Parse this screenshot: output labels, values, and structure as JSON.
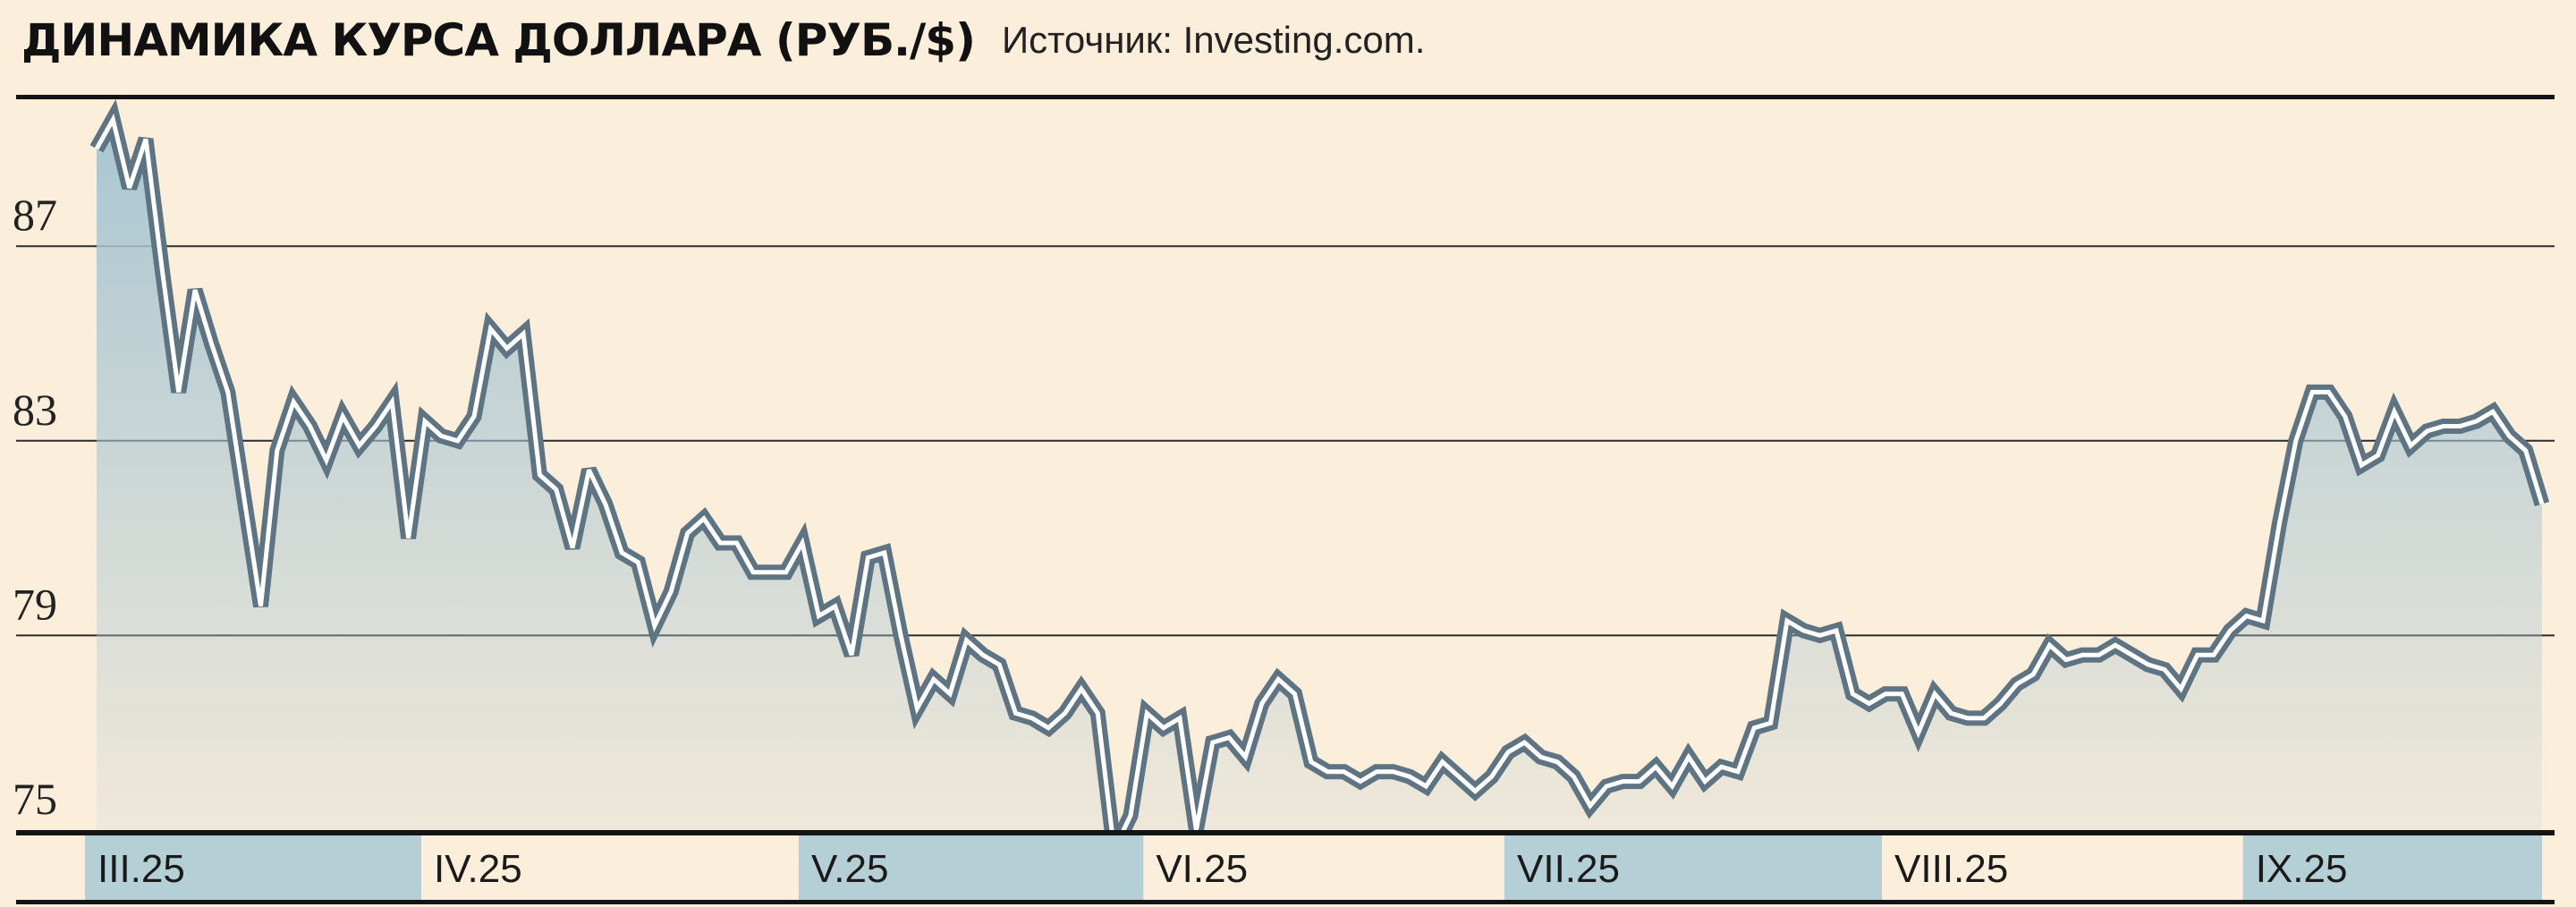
{
  "header": {
    "title": "ДИНАМИКА КУРСА ДОЛЛАРА  (РУБ./$)",
    "source": "Источник: Investing.com."
  },
  "colors": {
    "background": "#fbeedb",
    "line": "#5e7482",
    "line_inner": "#ffffff",
    "area_top": "#a9c6d2",
    "month_band": "#b5cfd6"
  },
  "chart_data": {
    "type": "area",
    "title": "ДИНАМИКА КУРСА ДОЛЛАРА (РУБ./$)",
    "xlabel": "",
    "ylabel": "",
    "ylim": [
      75,
      90
    ],
    "yticks": [
      75,
      79,
      83,
      87
    ],
    "grid": true,
    "months": [
      {
        "label": "III.25",
        "start": 0,
        "end": 20,
        "shaded": true
      },
      {
        "label": "IV.25",
        "start": 20,
        "end": 43,
        "shaded": false
      },
      {
        "label": "V.25",
        "start": 43,
        "end": 64,
        "shaded": true
      },
      {
        "label": "VI.25",
        "start": 64,
        "end": 86,
        "shaded": false
      },
      {
        "label": "VII.25",
        "start": 86,
        "end": 109,
        "shaded": true
      },
      {
        "label": "VIII.25",
        "start": 109,
        "end": 131,
        "shaded": false
      },
      {
        "label": "IX.25",
        "start": 131,
        "end": 152,
        "shaded": true
      }
    ],
    "series": [
      {
        "values": [
          89.0,
          89.6,
          88.2,
          89.2,
          86.5,
          84.0,
          86.1,
          85.0,
          84.0,
          81.8,
          79.6,
          82.8,
          83.8,
          83.3,
          82.6,
          83.5,
          82.9,
          83.3,
          83.8,
          81.0,
          83.4,
          83.1,
          83.0,
          83.5,
          85.3,
          84.9,
          85.2,
          82.3,
          82.0,
          80.8,
          82.4,
          81.7,
          80.7,
          80.5,
          79.2,
          79.9,
          81.1,
          81.4,
          80.9,
          80.9,
          80.3,
          80.3,
          80.3,
          80.9,
          79.4,
          79.6,
          78.6,
          80.6,
          80.7,
          79.0,
          77.5,
          78.1,
          77.8,
          78.9,
          78.6,
          78.4,
          77.4,
          77.3,
          77.1,
          77.4,
          77.9,
          77.4,
          74.6,
          75.3,
          77.4,
          77.1,
          77.3,
          75.0,
          76.8,
          76.9,
          76.5,
          77.6,
          78.1,
          77.8,
          76.4,
          76.2,
          76.2,
          76.0,
          76.2,
          76.2,
          76.1,
          75.9,
          76.4,
          76.1,
          75.8,
          76.1,
          76.6,
          76.8,
          76.5,
          76.4,
          76.1,
          75.5,
          75.9,
          76.0,
          76.0,
          76.3,
          75.9,
          76.5,
          76.0,
          76.3,
          76.2,
          77.1,
          77.2,
          79.3,
          79.1,
          79.0,
          79.1,
          77.8,
          77.6,
          77.8,
          77.8,
          77.0,
          77.8,
          77.4,
          77.3,
          77.3,
          77.6,
          78.0,
          78.2,
          78.8,
          78.5,
          78.6,
          78.6,
          78.8,
          78.6,
          78.4,
          78.3,
          77.9,
          78.6,
          78.6,
          79.1,
          79.4,
          79.3,
          81.3,
          83.0,
          84.0,
          84.0,
          83.5,
          82.5,
          82.7,
          83.6,
          82.9,
          83.2,
          83.3,
          83.3,
          83.4,
          83.6,
          83.1,
          82.8,
          81.7
        ]
      }
    ]
  }
}
